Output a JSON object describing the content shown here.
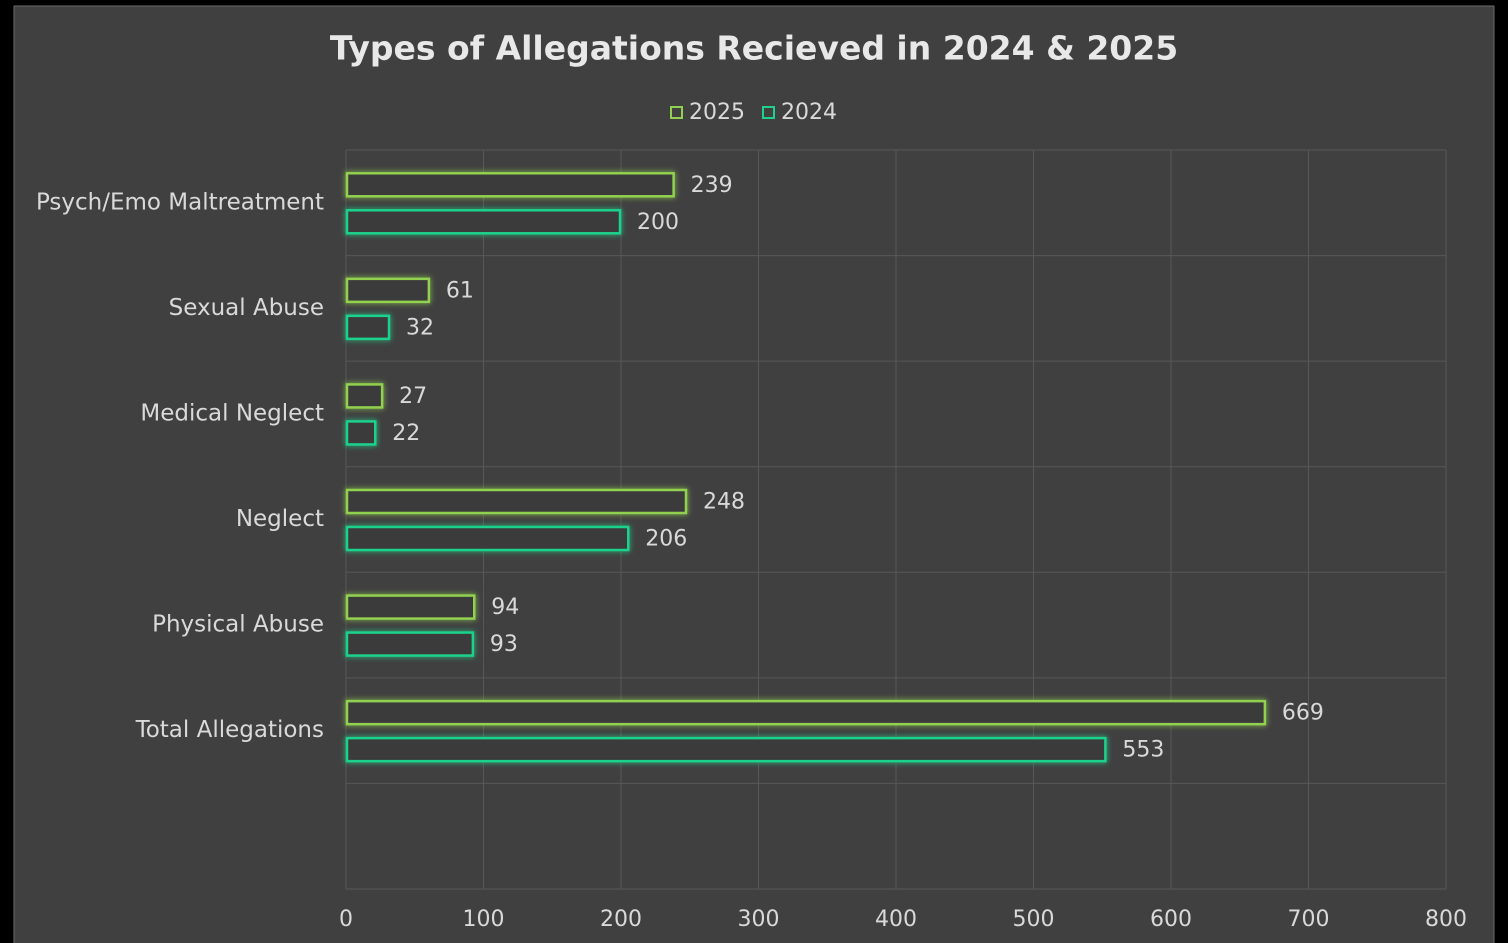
{
  "chart_data": {
    "type": "hbar",
    "title": "Types of Allegations Recieved in 2024 & 2025",
    "categories": [
      "Psych/Emo Maltreatment",
      "Sexual Abuse",
      "Medical Neglect",
      "Neglect",
      "Physical Abuse",
      "Total Allegations",
      null
    ],
    "series": [
      {
        "name": "2025",
        "color": "#92d050",
        "values": [
          239,
          61,
          27,
          248,
          94,
          669,
          null
        ]
      },
      {
        "name": "2024",
        "color": "#1fd18c",
        "values": [
          200,
          32,
          22,
          206,
          93,
          553,
          null
        ]
      }
    ],
    "xlim": [
      0,
      800
    ],
    "xticks": [
      0,
      100,
      200,
      300,
      400,
      500,
      600,
      700,
      800
    ],
    "grid": true,
    "legend": "top"
  }
}
